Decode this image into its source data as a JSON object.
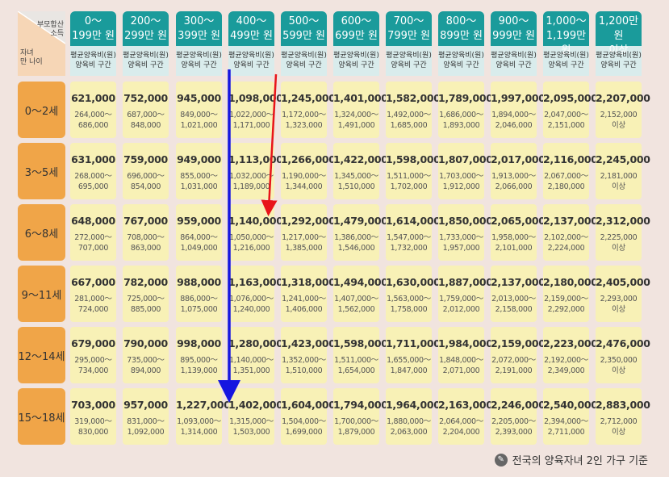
{
  "corner": {
    "top_label_1": "부모합산",
    "top_label_2": "소득",
    "left_label_1": "자녀",
    "left_label_2": "만 나이"
  },
  "columns": [
    {
      "line1": "0～",
      "line2": "199만 원",
      "sub1": "평균양육비(원)",
      "sub2": "양육비 구간"
    },
    {
      "line1": "200～",
      "line2": "299만 원",
      "sub1": "평균양육비(원)",
      "sub2": "양육비 구간"
    },
    {
      "line1": "300～",
      "line2": "399만 원",
      "sub1": "평균양육비(원)",
      "sub2": "양육비 구간"
    },
    {
      "line1": "400～",
      "line2": "499만 원",
      "sub1": "평균양육비(원)",
      "sub2": "양육비 구간"
    },
    {
      "line1": "500～",
      "line2": "599만 원",
      "sub1": "평균양육비(원)",
      "sub2": "양육비 구간"
    },
    {
      "line1": "600～",
      "line2": "699만 원",
      "sub1": "평균양육비(원)",
      "sub2": "양육비 구간"
    },
    {
      "line1": "700～",
      "line2": "799만 원",
      "sub1": "평균양육비(원)",
      "sub2": "양육비 구간"
    },
    {
      "line1": "800～",
      "line2": "899만 원",
      "sub1": "평균양육비(원)",
      "sub2": "양육비 구간"
    },
    {
      "line1": "900～",
      "line2": "999만 원",
      "sub1": "평균양육비(원)",
      "sub2": "양육비 구간"
    },
    {
      "line1": "1,000～",
      "line2": "1,199만 원",
      "sub1": "평균양육비(원)",
      "sub2": "양육비 구간"
    },
    {
      "line1": "1,200만 원",
      "line2": "이상",
      "sub1": "평균양육비(원)",
      "sub2": "양육비 구간"
    }
  ],
  "rows": [
    {
      "label": "0～2세",
      "cells": [
        {
          "avg": "621,000",
          "r1": "264,000～",
          "r2": "686,000"
        },
        {
          "avg": "752,000",
          "r1": "687,000～",
          "r2": "848,000"
        },
        {
          "avg": "945,000",
          "r1": "849,000～",
          "r2": "1,021,000"
        },
        {
          "avg": "1,098,000",
          "r1": "1,022,000～",
          "r2": "1,171,000"
        },
        {
          "avg": "1,245,000",
          "r1": "1,172,000～",
          "r2": "1,323,000"
        },
        {
          "avg": "1,401,000",
          "r1": "1,324,000～",
          "r2": "1,491,000"
        },
        {
          "avg": "1,582,000",
          "r1": "1,492,000～",
          "r2": "1,685,000"
        },
        {
          "avg": "1,789,000",
          "r1": "1,686,000～",
          "r2": "1,893,000"
        },
        {
          "avg": "1,997,000",
          "r1": "1,894,000～",
          "r2": "2,046,000"
        },
        {
          "avg": "2,095,000",
          "r1": "2,047,000～",
          "r2": "2,151,000"
        },
        {
          "avg": "2,207,000",
          "r1": "2,152,000",
          "r2": "이상"
        }
      ]
    },
    {
      "label": "3～5세",
      "cells": [
        {
          "avg": "631,000",
          "r1": "268,000～",
          "r2": "695,000"
        },
        {
          "avg": "759,000",
          "r1": "696,000～",
          "r2": "854,000"
        },
        {
          "avg": "949,000",
          "r1": "855,000～",
          "r2": "1,031,000"
        },
        {
          "avg": "1,113,000",
          "r1": "1,032,000～",
          "r2": "1,189,000"
        },
        {
          "avg": "1,266,000",
          "r1": "1,190,000～",
          "r2": "1,344,000"
        },
        {
          "avg": "1,422,000",
          "r1": "1,345,000～",
          "r2": "1,510,000"
        },
        {
          "avg": "1,598,000",
          "r1": "1,511,000～",
          "r2": "1,702,000"
        },
        {
          "avg": "1,807,000",
          "r1": "1,703,000～",
          "r2": "1,912,000"
        },
        {
          "avg": "2,017,000",
          "r1": "1,913,000～",
          "r2": "2,066,000"
        },
        {
          "avg": "2,116,000",
          "r1": "2,067,000～",
          "r2": "2,180,000"
        },
        {
          "avg": "2,245,000",
          "r1": "2,181,000",
          "r2": "이상"
        }
      ]
    },
    {
      "label": "6～8세",
      "cells": [
        {
          "avg": "648,000",
          "r1": "272,000～",
          "r2": "707,000"
        },
        {
          "avg": "767,000",
          "r1": "708,000～",
          "r2": "863,000"
        },
        {
          "avg": "959,000",
          "r1": "864,000～",
          "r2": "1,049,000"
        },
        {
          "avg": "1,140,000",
          "r1": "1,050,000～",
          "r2": "1,216,000"
        },
        {
          "avg": "1,292,000",
          "r1": "1,217,000～",
          "r2": "1,385,000"
        },
        {
          "avg": "1,479,000",
          "r1": "1,386,000～",
          "r2": "1,546,000"
        },
        {
          "avg": "1,614,000",
          "r1": "1,547,000～",
          "r2": "1,732,000"
        },
        {
          "avg": "1,850,000",
          "r1": "1,733,000～",
          "r2": "1,957,000"
        },
        {
          "avg": "2,065,000",
          "r1": "1,958,000～",
          "r2": "2,101,000"
        },
        {
          "avg": "2,137,000",
          "r1": "2,102,000～",
          "r2": "2,224,000"
        },
        {
          "avg": "2,312,000",
          "r1": "2,225,000",
          "r2": "이상"
        }
      ]
    },
    {
      "label": "9～11세",
      "cells": [
        {
          "avg": "667,000",
          "r1": "281,000～",
          "r2": "724,000"
        },
        {
          "avg": "782,000",
          "r1": "725,000～",
          "r2": "885,000"
        },
        {
          "avg": "988,000",
          "r1": "886,000～",
          "r2": "1,075,000"
        },
        {
          "avg": "1,163,000",
          "r1": "1,076,000～",
          "r2": "1,240,000"
        },
        {
          "avg": "1,318,000",
          "r1": "1,241,000～",
          "r2": "1,406,000"
        },
        {
          "avg": "1,494,000",
          "r1": "1,407,000～",
          "r2": "1,562,000"
        },
        {
          "avg": "1,630,000",
          "r1": "1,563,000～",
          "r2": "1,758,000"
        },
        {
          "avg": "1,887,000",
          "r1": "1,759,000～",
          "r2": "2,012,000"
        },
        {
          "avg": "2,137,000",
          "r1": "2,013,000～",
          "r2": "2,158,000"
        },
        {
          "avg": "2,180,000",
          "r1": "2,159,000～",
          "r2": "2,292,000"
        },
        {
          "avg": "2,405,000",
          "r1": "2,293,000",
          "r2": "이상"
        }
      ]
    },
    {
      "label": "12～14세",
      "cells": [
        {
          "avg": "679,000",
          "r1": "295,000～",
          "r2": "734,000"
        },
        {
          "avg": "790,000",
          "r1": "735,000～",
          "r2": "894,000"
        },
        {
          "avg": "998,000",
          "r1": "895,000～",
          "r2": "1,139,000"
        },
        {
          "avg": "1,280,000",
          "r1": "1,140,000～",
          "r2": "1,351,000"
        },
        {
          "avg": "1,423,000",
          "r1": "1,352,000～",
          "r2": "1,510,000"
        },
        {
          "avg": "1,598,000",
          "r1": "1,511,000～",
          "r2": "1,654,000"
        },
        {
          "avg": "1,711,000",
          "r1": "1,655,000～",
          "r2": "1,847,000"
        },
        {
          "avg": "1,984,000",
          "r1": "1,848,000～",
          "r2": "2,071,000"
        },
        {
          "avg": "2,159,000",
          "r1": "2,072,000～",
          "r2": "2,191,000"
        },
        {
          "avg": "2,223,000",
          "r1": "2,192,000～",
          "r2": "2,349,000"
        },
        {
          "avg": "2,476,000",
          "r1": "2,350,000",
          "r2": "이상"
        }
      ]
    },
    {
      "label": "15～18세",
      "cells": [
        {
          "avg": "703,000",
          "r1": "319,000～",
          "r2": "830,000"
        },
        {
          "avg": "957,000",
          "r1": "831,000～",
          "r2": "1,092,000"
        },
        {
          "avg": "1,227,000",
          "r1": "1,093,000～",
          "r2": "1,314,000"
        },
        {
          "avg": "1,402,000",
          "r1": "1,315,000～",
          "r2": "1,503,000"
        },
        {
          "avg": "1,604,000",
          "r1": "1,504,000～",
          "r2": "1,699,000"
        },
        {
          "avg": "1,794,000",
          "r1": "1,700,000～",
          "r2": "1,879,000"
        },
        {
          "avg": "1,964,000",
          "r1": "1,880,000～",
          "r2": "2,063,000"
        },
        {
          "avg": "2,163,000",
          "r1": "2,064,000～",
          "r2": "2,204,000"
        },
        {
          "avg": "2,246,000",
          "r1": "2,205,000～",
          "r2": "2,393,000"
        },
        {
          "avg": "2,540,000",
          "r1": "2,394,000～",
          "r2": "2,711,000"
        },
        {
          "avg": "2,883,000",
          "r1": "2,712,000",
          "r2": "이상"
        }
      ]
    }
  ],
  "footnote": "전국의 양육자녀 2인 가구 기준",
  "colors": {
    "header": "#1a9b9b",
    "header_sub": "#d9ecec",
    "row_label": "#f0a548",
    "cell": "#f8f1b6",
    "arrow_red": "#e8141a",
    "arrow_blue": "#1515e0"
  }
}
